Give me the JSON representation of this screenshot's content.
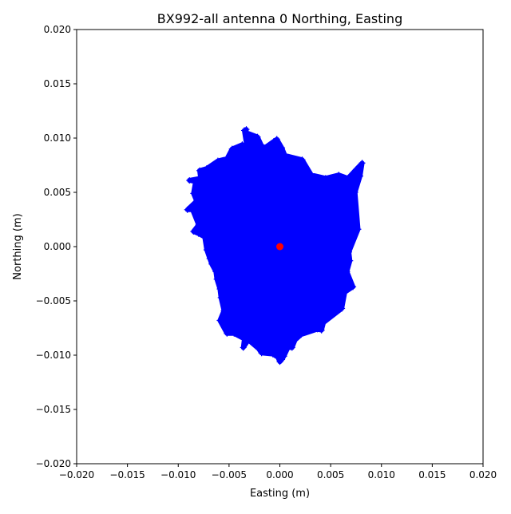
{
  "chart_data": {
    "type": "scatter",
    "title": "BX992-all antenna 0 Northing, Easting",
    "xlabel": "Easting (m)",
    "ylabel": "Northing (m)",
    "xlim": [
      -0.02,
      0.02
    ],
    "ylim": [
      -0.02,
      0.02
    ],
    "xticks": [
      -0.02,
      -0.015,
      -0.01,
      -0.005,
      0.0,
      0.005,
      0.01,
      0.015,
      0.02
    ],
    "yticks": [
      -0.02,
      -0.015,
      -0.01,
      -0.005,
      0.0,
      0.005,
      0.01,
      0.015,
      0.02
    ],
    "xtick_labels": [
      "−0.020",
      "−0.015",
      "−0.010",
      "−0.005",
      "0.000",
      "0.005",
      "0.010",
      "0.015",
      "0.020"
    ],
    "ytick_labels": [
      "−0.020",
      "−0.015",
      "−0.010",
      "−0.005",
      "0.000",
      "0.005",
      "0.010",
      "0.015",
      "0.020"
    ],
    "grid": false,
    "legend": "none",
    "series": [
      {
        "marker": "plus",
        "color": "#0000ff",
        "points": [
          [
            -0.0035,
            0.0107
          ],
          [
            -0.0033,
            0.0108
          ],
          [
            -0.0033,
            0.0105
          ],
          [
            -0.0022,
            0.0101
          ],
          [
            -0.0018,
            0.0093
          ],
          [
            -0.0015,
            0.0091
          ],
          [
            -0.0006,
            0.0097
          ],
          [
            -0.0003,
            0.0099
          ],
          [
            0.0002,
            0.0091
          ],
          [
            0.0005,
            0.0084
          ],
          [
            0.0022,
            0.008
          ],
          [
            0.0031,
            0.0066
          ],
          [
            0.0045,
            0.0063
          ],
          [
            0.0058,
            0.0066
          ],
          [
            0.0067,
            0.0063
          ],
          [
            0.0075,
            0.0071
          ],
          [
            0.0081,
            0.0077
          ],
          [
            0.0079,
            0.0065
          ],
          [
            0.0074,
            0.005
          ],
          [
            0.0077,
            0.0016
          ],
          [
            0.0068,
            -0.0005
          ],
          [
            0.0069,
            -0.0013
          ],
          [
            0.0066,
            -0.0023
          ],
          [
            0.0072,
            -0.0037
          ],
          [
            0.0064,
            -0.0042
          ],
          [
            0.0061,
            -0.0057
          ],
          [
            0.0043,
            -0.007
          ],
          [
            0.0041,
            -0.0077
          ],
          [
            0.0037,
            -0.0076
          ],
          [
            0.0021,
            -0.0081
          ],
          [
            0.0015,
            -0.0086
          ],
          [
            0.0012,
            -0.0093
          ],
          [
            0.0008,
            -0.0093
          ],
          [
            0.0004,
            -0.0101
          ],
          [
            0.0002,
            -0.0104
          ],
          [
            0.0,
            -0.0106
          ],
          [
            -0.0002,
            -0.0102
          ],
          [
            -0.0007,
            -0.0099
          ],
          [
            -0.0018,
            -0.0098
          ],
          [
            -0.0021,
            -0.0094
          ],
          [
            -0.0031,
            -0.0086
          ],
          [
            -0.0036,
            -0.0093
          ],
          [
            -0.0035,
            -0.0085
          ],
          [
            -0.0045,
            -0.008
          ],
          [
            -0.0052,
            -0.008
          ],
          [
            -0.0059,
            -0.0068
          ],
          [
            -0.0055,
            -0.0059
          ],
          [
            -0.0058,
            -0.0047
          ],
          [
            -0.0059,
            -0.0039
          ],
          [
            -0.0062,
            -0.003
          ],
          [
            -0.0063,
            -0.0023
          ],
          [
            -0.0067,
            -0.0016
          ],
          [
            -0.0069,
            -0.0011
          ],
          [
            -0.0072,
            -0.0003
          ],
          [
            -0.0074,
            0.0009
          ],
          [
            -0.008,
            0.0012
          ],
          [
            -0.0085,
            0.0014
          ],
          [
            -0.008,
            0.002
          ],
          [
            -0.0086,
            0.0034
          ],
          [
            -0.0091,
            0.0034
          ],
          [
            -0.0082,
            0.0042
          ],
          [
            -0.0085,
            0.0049
          ],
          [
            -0.0083,
            0.006
          ],
          [
            -0.0089,
            0.0061
          ],
          [
            -0.0078,
            0.0063
          ],
          [
            -0.0079,
            0.007
          ],
          [
            -0.0072,
            0.0072
          ],
          [
            -0.0061,
            0.0079
          ],
          [
            -0.0052,
            0.0081
          ],
          [
            -0.0047,
            0.009
          ],
          [
            -0.0037,
            0.0094
          ],
          [
            -0.0032,
            0.0089
          ]
        ]
      },
      {
        "marker": "circle",
        "color": "#ff0000",
        "points": [
          [
            0.0,
            0.0
          ]
        ]
      }
    ]
  }
}
